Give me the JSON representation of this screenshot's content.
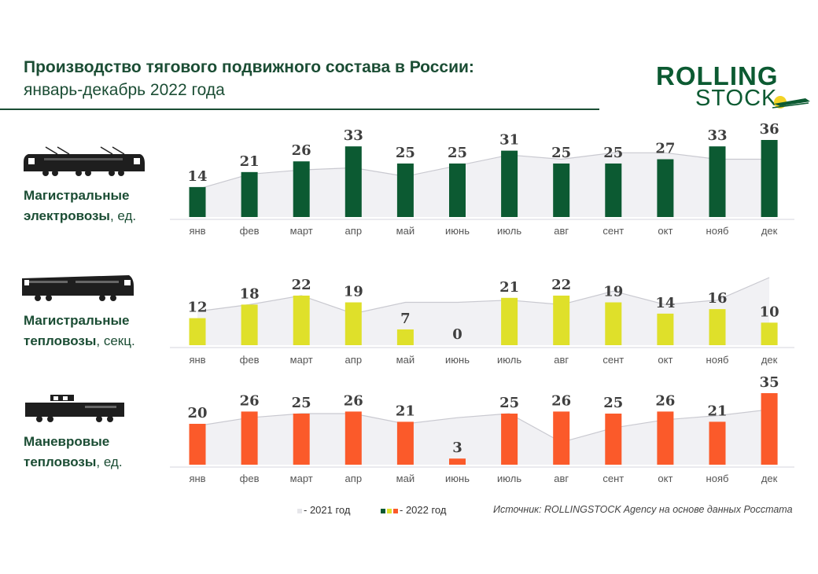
{
  "header": {
    "title": "Производство тягового подвижного состава в России:",
    "subtitle": "январь-декабрь 2022 года"
  },
  "logo": {
    "line1": "ROLLING",
    "line2": "STOCK"
  },
  "colors": {
    "title": "#1b4d34",
    "bar_electric": "#0c5a32",
    "bar_diesel": "#dfe02a",
    "bar_shunting": "#fb5a2a",
    "area_2021": "#f1f1f4",
    "line_2021": "#c9c9d0"
  },
  "panels": [
    {
      "label_bold": "Магистральные",
      "label_rest_bold": "электровозы",
      "label_unit": ", ед.",
      "icon": "electric-locomotive-icon"
    },
    {
      "label_bold": "Магистральные",
      "label_rest_bold": "тепловозы",
      "label_unit": ", секц.",
      "icon": "diesel-locomotive-icon"
    },
    {
      "label_bold": "Маневровые",
      "label_rest_bold": "тепловозы",
      "label_unit": ", ед.",
      "icon": "shunting-locomotive-icon"
    }
  ],
  "chart_data": [
    {
      "type": "bar",
      "title": "Магистральные электровозы, ед.",
      "categories": [
        "янв",
        "фев",
        "март",
        "апр",
        "май",
        "июнь",
        "июль",
        "авг",
        "сент",
        "окт",
        "нояб",
        "дек"
      ],
      "series": [
        {
          "name": "2022 год",
          "values": [
            14,
            21,
            26,
            33,
            25,
            25,
            31,
            25,
            25,
            27,
            33,
            36
          ]
        },
        {
          "name": "2021 год",
          "values": [
            13,
            20,
            22,
            23,
            19,
            24,
            29,
            27,
            30,
            30,
            27,
            27
          ]
        }
      ],
      "ylim": [
        0,
        36
      ]
    },
    {
      "type": "bar",
      "title": "Магистральные тепловозы, секц.",
      "categories": [
        "янв",
        "фев",
        "март",
        "апр",
        "май",
        "июнь",
        "июль",
        "авг",
        "сент",
        "окт",
        "нояб",
        "дек"
      ],
      "series": [
        {
          "name": "2022 год",
          "values": [
            12,
            18,
            22,
            19,
            7,
            0,
            21,
            22,
            19,
            14,
            16,
            10
          ]
        },
        {
          "name": "2021 год",
          "values": [
            15,
            18,
            22,
            14,
            19,
            19,
            20,
            18,
            24,
            18,
            20,
            30
          ]
        }
      ],
      "ylim": [
        0,
        30
      ]
    },
    {
      "type": "bar",
      "title": "Маневровые тепловозы, ед.",
      "categories": [
        "янв",
        "фев",
        "март",
        "апр",
        "май",
        "июнь",
        "июль",
        "авг",
        "сент",
        "окт",
        "нояб",
        "дек"
      ],
      "series": [
        {
          "name": "2022 год",
          "values": [
            20,
            26,
            25,
            26,
            21,
            3,
            25,
            26,
            25,
            26,
            21,
            35
          ]
        },
        {
          "name": "2021 год",
          "values": [
            19,
            23,
            25,
            25,
            20,
            23,
            25,
            11,
            18,
            22,
            24,
            27
          ]
        }
      ],
      "ylim": [
        0,
        35
      ]
    }
  ],
  "legend": {
    "item_2021": "- 2021 год",
    "item_2022": "- 2022 год"
  },
  "source": "Источник: ROLLINGSTOCK Agency на основе данных Росстата"
}
